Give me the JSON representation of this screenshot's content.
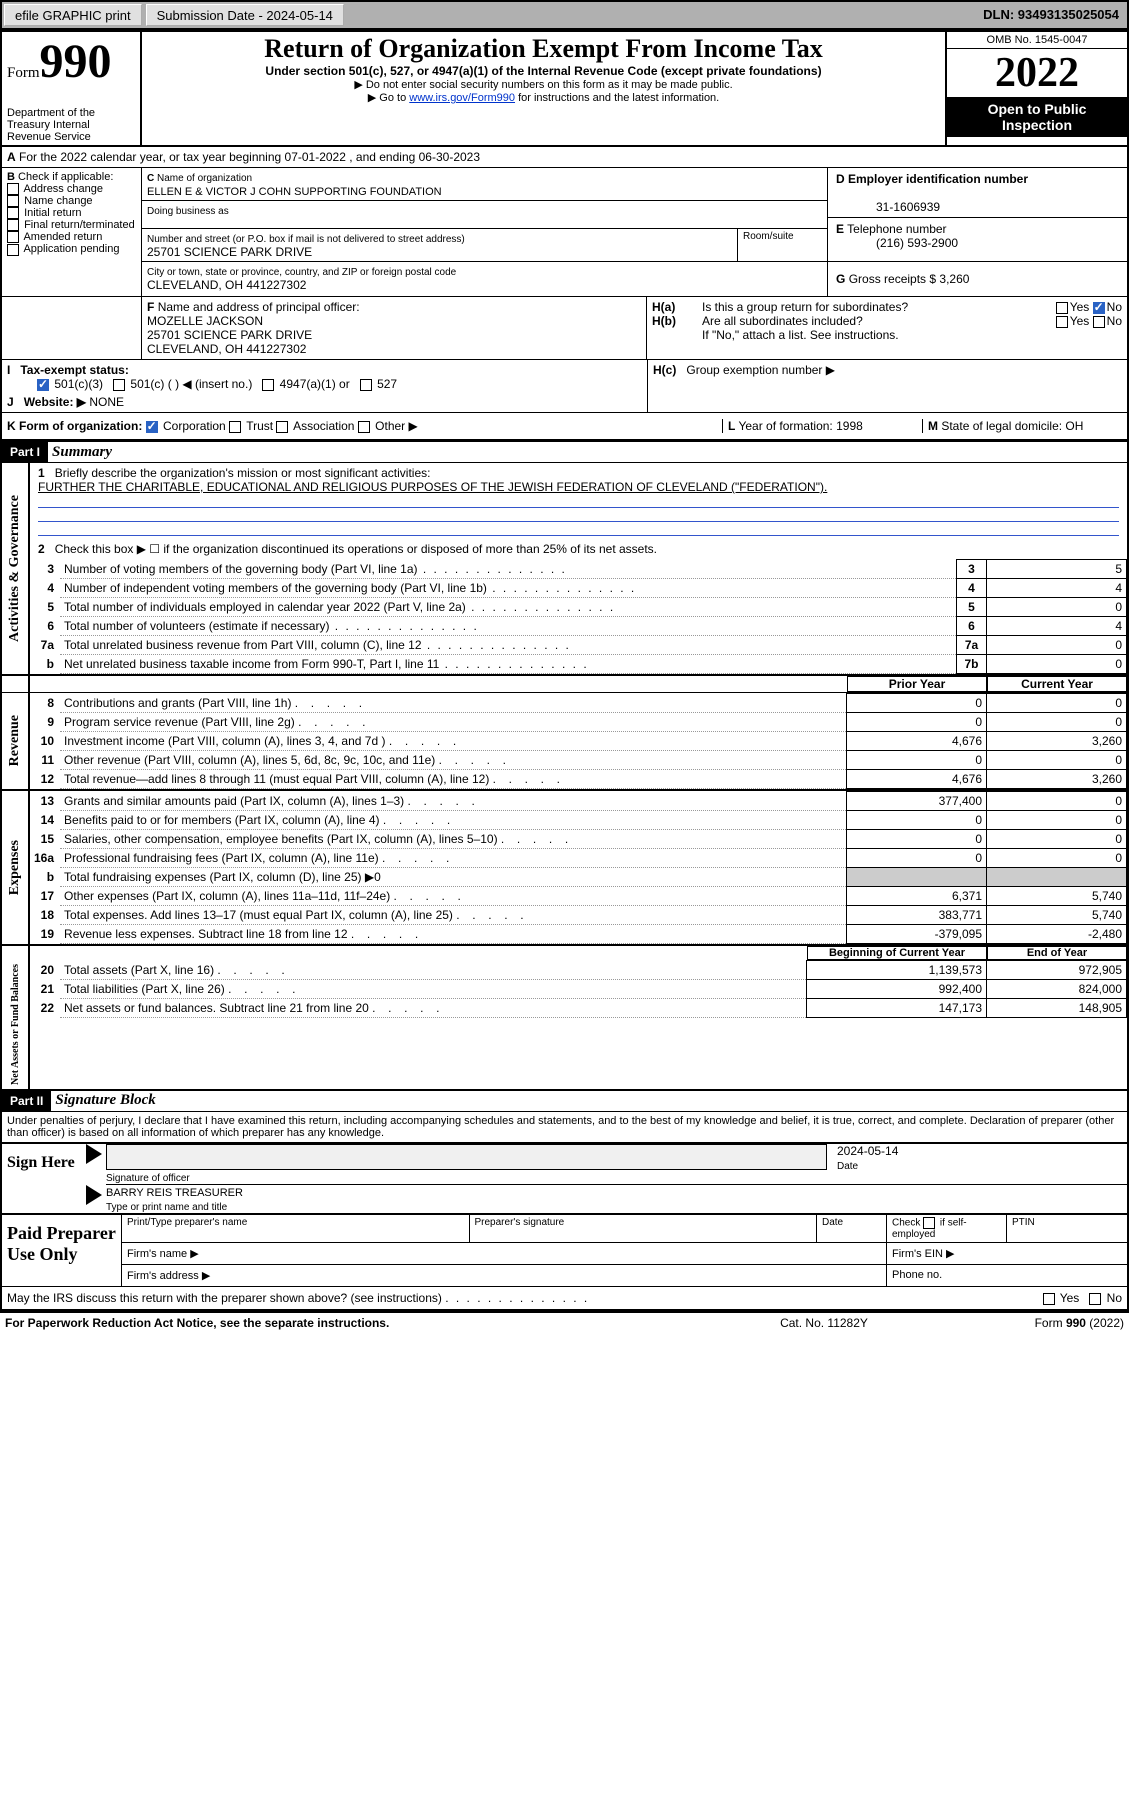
{
  "topbar": {
    "efile": "efile GRAPHIC print",
    "submission": "Submission Date - 2024-05-14",
    "dln": "DLN: 93493135025054"
  },
  "header": {
    "form_word": "Form",
    "form_number": "990",
    "title": "Return of Organization Exempt From Income Tax",
    "subtitle": "Under section 501(c), 527, or 4947(a)(1) of the Internal Revenue Code (except private foundations)",
    "note1": "▶ Do not enter social security numbers on this form as it may be made public.",
    "note2_pre": "▶ Go to ",
    "note2_link": "www.irs.gov/Form990",
    "note2_post": " for instructions and the latest information.",
    "omb": "OMB No. 1545-0047",
    "year": "2022",
    "open": "Open to Public Inspection",
    "dept": "Department of the Treasury Internal Revenue Service"
  },
  "sectionA": {
    "line": "For the 2022 calendar year, or tax year beginning 07-01-2022   , and ending 06-30-2023"
  },
  "sectionB": {
    "label": "Check if applicable:",
    "items": [
      "Address change",
      "Name change",
      "Initial return",
      "Final return/terminated",
      "Amended return",
      "Application pending"
    ]
  },
  "sectionC": {
    "label": "Name of organization",
    "name": "ELLEN E & VICTOR J COHN SUPPORTING FOUNDATION",
    "dba_label": "Doing business as",
    "addr_label": "Number and street (or P.O. box if mail is not delivered to street address)",
    "room_label": "Room/suite",
    "addr": "25701 SCIENCE PARK DRIVE",
    "city_label": "City or town, state or province, country, and ZIP or foreign postal code",
    "city": "CLEVELAND, OH  441227302"
  },
  "sectionD": {
    "label": "Employer identification number",
    "value": "31-1606939"
  },
  "sectionE": {
    "label": "Telephone number",
    "value": "(216) 593-2900"
  },
  "sectionG": {
    "label": "Gross receipts $",
    "value": "3,260"
  },
  "sectionF": {
    "label": "Name and address of principal officer:",
    "name": "MOZELLE JACKSON",
    "addr1": "25701 SCIENCE PARK DRIVE",
    "addr2": "CLEVELAND, OH  441227302"
  },
  "sectionH": {
    "a": "Is this a group return for subordinates?",
    "b": "Are all subordinates included?",
    "note": "If \"No,\" attach a list. See instructions.",
    "c": "Group exemption number ▶",
    "yes": "Yes",
    "no": "No"
  },
  "sectionI": {
    "label": "Tax-exempt status:",
    "opts": [
      "501(c)(3)",
      "501(c) (   ) ◀ (insert no.)",
      "4947(a)(1) or",
      "527"
    ]
  },
  "sectionJ": {
    "label": "Website: ▶",
    "value": "NONE"
  },
  "sectionK": {
    "label": "Form of organization:",
    "opts": [
      "Corporation",
      "Trust",
      "Association",
      "Other ▶"
    ]
  },
  "sectionL": {
    "label": "Year of formation:",
    "value": "1998"
  },
  "sectionM": {
    "label": "State of legal domicile:",
    "value": "OH"
  },
  "part1": {
    "label": "Part I",
    "title": "Summary",
    "q1": "Briefly describe the organization's mission or most significant activities:",
    "q1v": "FURTHER THE CHARITABLE, EDUCATIONAL AND RELIGIOUS PURPOSES OF THE JEWISH FEDERATION OF CLEVELAND (\"FEDERATION\").",
    "q2": "Check this box ▶ ☐ if the organization discontinued its operations or disposed of more than 25% of its net assets.",
    "lines_gov": [
      {
        "n": "3",
        "t": "Number of voting members of the governing body (Part VI, line 1a)",
        "box": "3",
        "v": "5"
      },
      {
        "n": "4",
        "t": "Number of independent voting members of the governing body (Part VI, line 1b)",
        "box": "4",
        "v": "4"
      },
      {
        "n": "5",
        "t": "Total number of individuals employed in calendar year 2022 (Part V, line 2a)",
        "box": "5",
        "v": "0"
      },
      {
        "n": "6",
        "t": "Total number of volunteers (estimate if necessary)",
        "box": "6",
        "v": "4"
      },
      {
        "n": "7a",
        "t": "Total unrelated business revenue from Part VIII, column (C), line 12",
        "box": "7a",
        "v": "0"
      },
      {
        "n": "b",
        "t": "Net unrelated business taxable income from Form 990-T, Part I, line 11",
        "box": "7b",
        "v": "0"
      }
    ],
    "col_prior": "Prior Year",
    "col_current": "Current Year",
    "lines_rev": [
      {
        "n": "8",
        "t": "Contributions and grants (Part VIII, line 1h)",
        "p": "0",
        "c": "0"
      },
      {
        "n": "9",
        "t": "Program service revenue (Part VIII, line 2g)",
        "p": "0",
        "c": "0"
      },
      {
        "n": "10",
        "t": "Investment income (Part VIII, column (A), lines 3, 4, and 7d )",
        "p": "4,676",
        "c": "3,260"
      },
      {
        "n": "11",
        "t": "Other revenue (Part VIII, column (A), lines 5, 6d, 8c, 9c, 10c, and 11e)",
        "p": "0",
        "c": "0"
      },
      {
        "n": "12",
        "t": "Total revenue—add lines 8 through 11 (must equal Part VIII, column (A), line 12)",
        "p": "4,676",
        "c": "3,260"
      }
    ],
    "lines_exp": [
      {
        "n": "13",
        "t": "Grants and similar amounts paid (Part IX, column (A), lines 1–3)",
        "p": "377,400",
        "c": "0"
      },
      {
        "n": "14",
        "t": "Benefits paid to or for members (Part IX, column (A), line 4)",
        "p": "0",
        "c": "0"
      },
      {
        "n": "15",
        "t": "Salaries, other compensation, employee benefits (Part IX, column (A), lines 5–10)",
        "p": "0",
        "c": "0"
      },
      {
        "n": "16a",
        "t": "Professional fundraising fees (Part IX, column (A), line 11e)",
        "p": "0",
        "c": "0"
      },
      {
        "n": "b",
        "t": "Total fundraising expenses (Part IX, column (D), line 25) ▶0",
        "p": "",
        "c": "",
        "shade": true
      },
      {
        "n": "17",
        "t": "Other expenses (Part IX, column (A), lines 11a–11d, 11f–24e)",
        "p": "6,371",
        "c": "5,740"
      },
      {
        "n": "18",
        "t": "Total expenses. Add lines 13–17 (must equal Part IX, column (A), line 25)",
        "p": "383,771",
        "c": "5,740"
      },
      {
        "n": "19",
        "t": "Revenue less expenses. Subtract line 18 from line 12",
        "p": "-379,095",
        "c": "-2,480"
      }
    ],
    "col_begin": "Beginning of Current Year",
    "col_end": "End of Year",
    "lines_net": [
      {
        "n": "20",
        "t": "Total assets (Part X, line 16)",
        "p": "1,139,573",
        "c": "972,905"
      },
      {
        "n": "21",
        "t": "Total liabilities (Part X, line 26)",
        "p": "992,400",
        "c": "824,000"
      },
      {
        "n": "22",
        "t": "Net assets or fund balances. Subtract line 21 from line 20",
        "p": "147,173",
        "c": "148,905"
      }
    ],
    "side_gov": "Activities & Governance",
    "side_rev": "Revenue",
    "side_exp": "Expenses",
    "side_net": "Net Assets or Fund Balances"
  },
  "part2": {
    "label": "Part II",
    "title": "Signature Block",
    "decl": "Under penalties of perjury, I declare that I have examined this return, including accompanying schedules and statements, and to the best of my knowledge and belief, it is true, correct, and complete. Declaration of preparer (other than officer) is based on all information of which preparer has any knowledge.",
    "sign_here": "Sign Here",
    "sig_officer": "Signature of officer",
    "date": "Date",
    "date_val": "2024-05-14",
    "name_title": "BARRY REIS  TREASURER",
    "name_label": "Type or print name and title",
    "paid": "Paid Preparer Use Only",
    "p_name": "Print/Type preparer's name",
    "p_sig": "Preparer's signature",
    "p_date": "Date",
    "p_check": "if self-employed",
    "check": "Check",
    "ptin": "PTIN",
    "firm_name": "Firm's name    ▶",
    "firm_ein": "Firm's EIN ▶",
    "firm_addr": "Firm's address ▶",
    "phone": "Phone no.",
    "may_irs": "May the IRS discuss this return with the preparer shown above? (see instructions)"
  },
  "footer": {
    "left": "For Paperwork Reduction Act Notice, see the separate instructions.",
    "mid": "Cat. No. 11282Y",
    "right": "Form 990 (2022)"
  }
}
